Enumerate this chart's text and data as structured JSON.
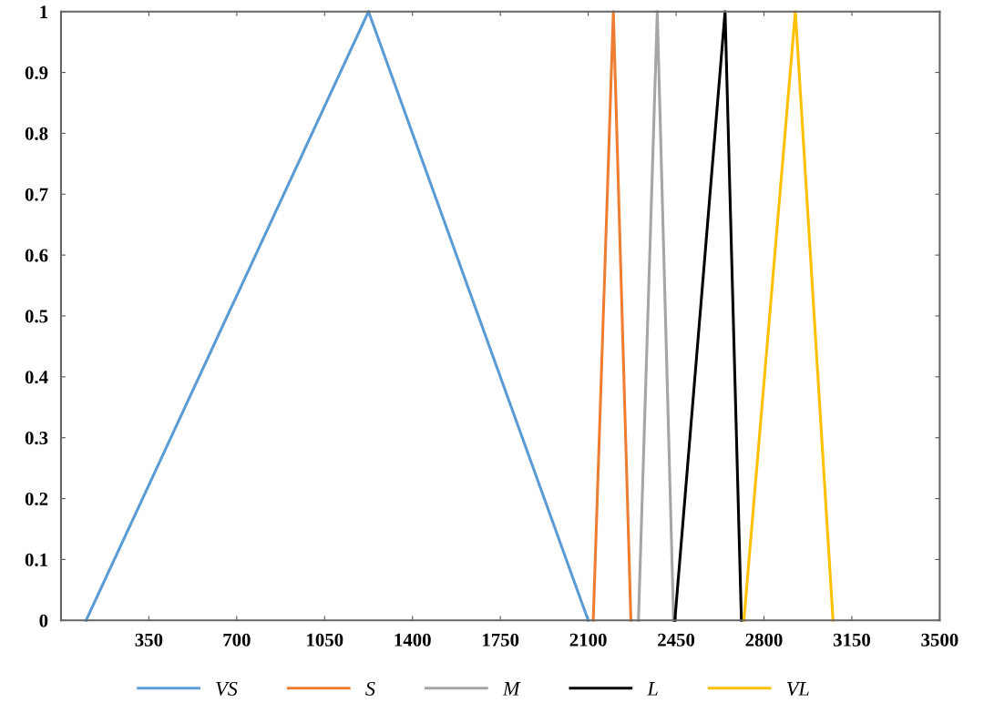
{
  "chart_data": {
    "type": "line",
    "series": [
      {
        "name": "VS",
        "color": "#5b9bd5",
        "x": [
          100,
          1225,
          2100
        ],
        "values": [
          0,
          1,
          0
        ]
      },
      {
        "name": "S",
        "color": "#ed7d31",
        "x": [
          2120,
          2200,
          2270
        ],
        "values": [
          0,
          1,
          0
        ]
      },
      {
        "name": "M",
        "color": "#a5a5a5",
        "x": [
          2300,
          2375,
          2440
        ],
        "values": [
          0,
          1,
          0
        ]
      },
      {
        "name": "L",
        "color": "#000000",
        "x": [
          2445,
          2645,
          2710
        ],
        "values": [
          0,
          1,
          0
        ]
      },
      {
        "name": "VL",
        "color": "#ffc000",
        "x": [
          2720,
          2925,
          3075
        ],
        "values": [
          0,
          1,
          0
        ]
      }
    ],
    "xlim": [
      0,
      3500
    ],
    "xticks": [
      350,
      700,
      1050,
      1400,
      1750,
      2100,
      2450,
      2800,
      3150,
      3500
    ],
    "ylim": [
      0,
      1
    ],
    "yticks": [
      0,
      0.1,
      0.2,
      0.3,
      0.4,
      0.5,
      0.6,
      0.7,
      0.8,
      0.9,
      1
    ],
    "grid": false,
    "legend": "bottom"
  }
}
